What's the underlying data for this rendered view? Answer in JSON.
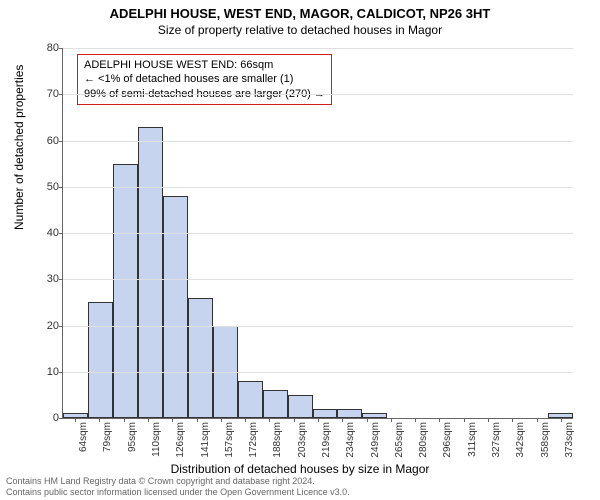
{
  "title": "ADELPHI HOUSE, WEST END, MAGOR, CALDICOT, NP26 3HT",
  "subtitle": "Size of property relative to detached houses in Magor",
  "ylabel": "Number of detached properties",
  "xlabel": "Distribution of detached houses by size in Magor",
  "chart": {
    "type": "histogram",
    "ylim": [
      0,
      80
    ],
    "ytick_step": 10,
    "bar_fill": "#c7d4ef",
    "bar_border": "#333333",
    "grid_color": "#e0e0e0",
    "axis_color": "#666666",
    "background_color": "#ffffff",
    "categories": [
      "64sqm",
      "79sqm",
      "95sqm",
      "110sqm",
      "126sqm",
      "141sqm",
      "157sqm",
      "172sqm",
      "188sqm",
      "203sqm",
      "219sqm",
      "234sqm",
      "249sqm",
      "265sqm",
      "280sqm",
      "296sqm",
      "311sqm",
      "327sqm",
      "342sqm",
      "358sqm",
      "373sqm"
    ],
    "values": [
      1,
      25,
      55,
      63,
      48,
      26,
      20,
      8,
      6,
      5,
      2,
      2,
      1,
      0,
      0,
      0,
      0,
      0,
      0,
      0,
      1
    ]
  },
  "annotation": {
    "border_color": "#d01c1c",
    "line1": "ADELPHI HOUSE WEST END: 66sqm",
    "line2": "← <1% of detached houses are smaller (1)",
    "line3": "99% of semi-detached houses are larger (270) →"
  },
  "footer": {
    "line1": "Contains HM Land Registry data © Crown copyright and database right 2024.",
    "line2": "Contains public sector information licensed under the Open Government Licence v3.0."
  }
}
